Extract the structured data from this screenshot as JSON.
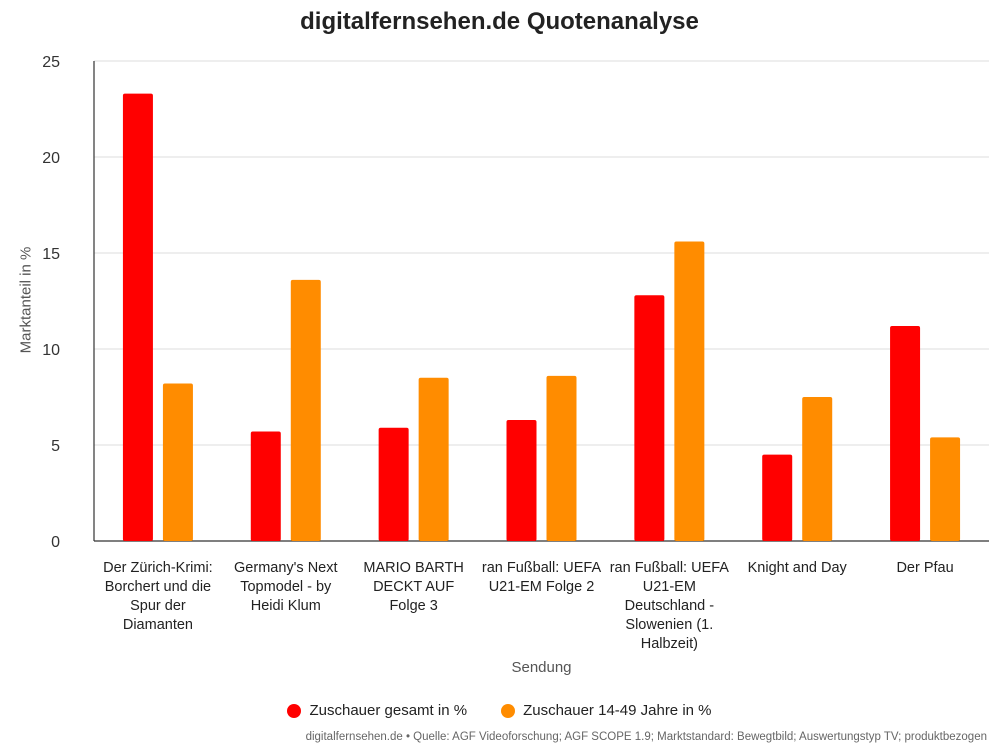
{
  "chart_data": {
    "type": "bar",
    "title": "digitalfernsehen.de Quotenanalyse",
    "xlabel": "Sendung",
    "ylabel": "Marktanteil in %",
    "ylim": [
      0,
      25
    ],
    "yticks": [
      0,
      5,
      10,
      15,
      20,
      25
    ],
    "grid": true,
    "legend_position": "bottom",
    "categories": [
      "Der Zürich-Krimi: Borchert und die Spur der Diamanten",
      "Germany's Next Topmodel - by Heidi Klum",
      "MARIO BARTH DECKT AUF Folge 3",
      "ran Fußball: UEFA U21-EM Folge 2",
      "ran Fußball: UEFA U21-EM Deutschland - Slowenien (1. Halbzeit)",
      "Knight and Day",
      "Der Pfau"
    ],
    "series": [
      {
        "name": "Zuschauer gesamt in %",
        "color": "#ff0000",
        "values": [
          23.3,
          5.7,
          5.9,
          6.3,
          12.8,
          4.5,
          11.2
        ]
      },
      {
        "name": "Zuschauer 14-49 Jahre in %",
        "color": "#ff8c00",
        "values": [
          8.2,
          13.6,
          8.5,
          8.6,
          15.6,
          7.5,
          5.4
        ]
      }
    ],
    "source": "digitalfernsehen.de • Quelle: AGF Videoforschung; AGF SCOPE 1.9; Marktstandard: Bewegtbild; Auswertungstyp TV; produktbezogen"
  }
}
